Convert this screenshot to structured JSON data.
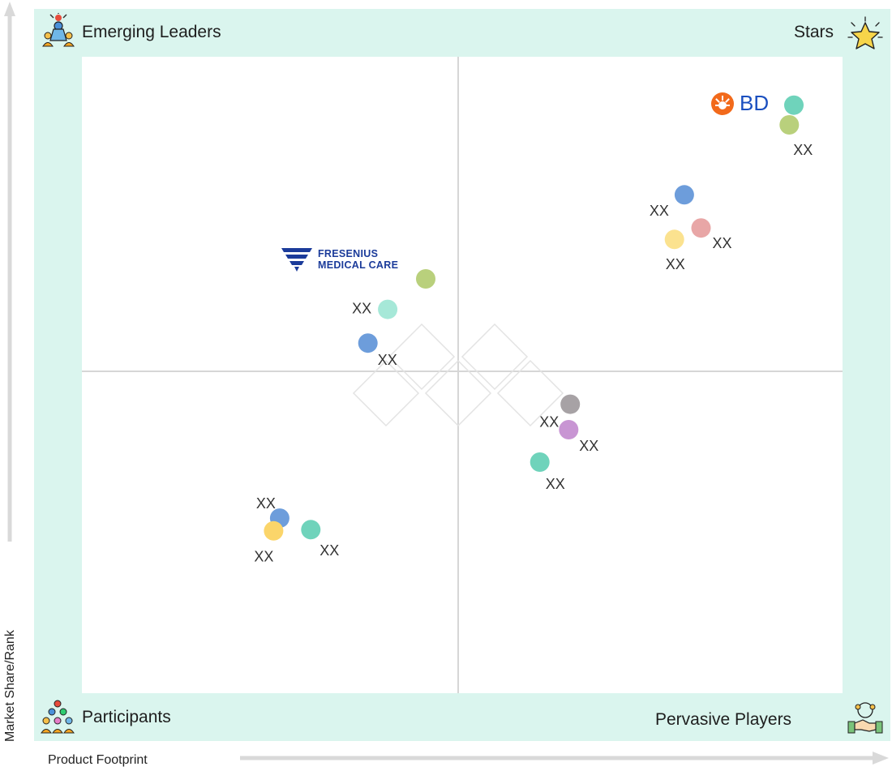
{
  "quadrants": {
    "top_left": "Emerging Leaders",
    "top_right": "Stars",
    "bottom_left": "Participants",
    "bottom_right": "Pervasive Players"
  },
  "axes": {
    "y_label": "Market Share/Rank",
    "x_label": "Product Footprint"
  },
  "logos": {
    "bd": "BD",
    "fresenius_line1": "FRESENIUS",
    "fresenius_line2": "MEDICAL CARE"
  },
  "chart_data": {
    "type": "scatter",
    "xlim": [
      0,
      100
    ],
    "ylim": [
      0,
      100
    ],
    "grid": false,
    "quadrant_split": {
      "x": 50,
      "y": 50
    },
    "points": [
      {
        "x": 93.6,
        "y": 92.4,
        "color": "#6fd3bb",
        "label": ""
      },
      {
        "x": 93.0,
        "y": 89.3,
        "color": "#b9d07c",
        "label": "XX"
      },
      {
        "x": 79.2,
        "y": 78.3,
        "color": "#6d9ddb",
        "label": "XX"
      },
      {
        "x": 81.4,
        "y": 73.1,
        "color": "#e8a6a6",
        "label": "XX"
      },
      {
        "x": 77.9,
        "y": 71.3,
        "color": "#fbe28f",
        "label": "XX"
      },
      {
        "x": 45.2,
        "y": 65.1,
        "color": "#b9d07c",
        "label": ""
      },
      {
        "x": 40.2,
        "y": 60.3,
        "color": "#a6e8d8",
        "label": "XX"
      },
      {
        "x": 37.6,
        "y": 55.0,
        "color": "#6d9ddb",
        "label": "XX"
      },
      {
        "x": 64.2,
        "y": 45.4,
        "color": "#a7a2a5",
        "label": "XX"
      },
      {
        "x": 64.0,
        "y": 41.4,
        "color": "#c895d3",
        "label": "XX"
      },
      {
        "x": 60.2,
        "y": 36.3,
        "color": "#6fd3bb",
        "label": "XX"
      },
      {
        "x": 26.0,
        "y": 27.5,
        "color": "#6d9ddb",
        "label": "XX"
      },
      {
        "x": 25.2,
        "y": 25.5,
        "color": "#fbd56a",
        "label": "XX"
      },
      {
        "x": 30.1,
        "y": 25.7,
        "color": "#6fd3bb",
        "label": "XX"
      }
    ]
  }
}
